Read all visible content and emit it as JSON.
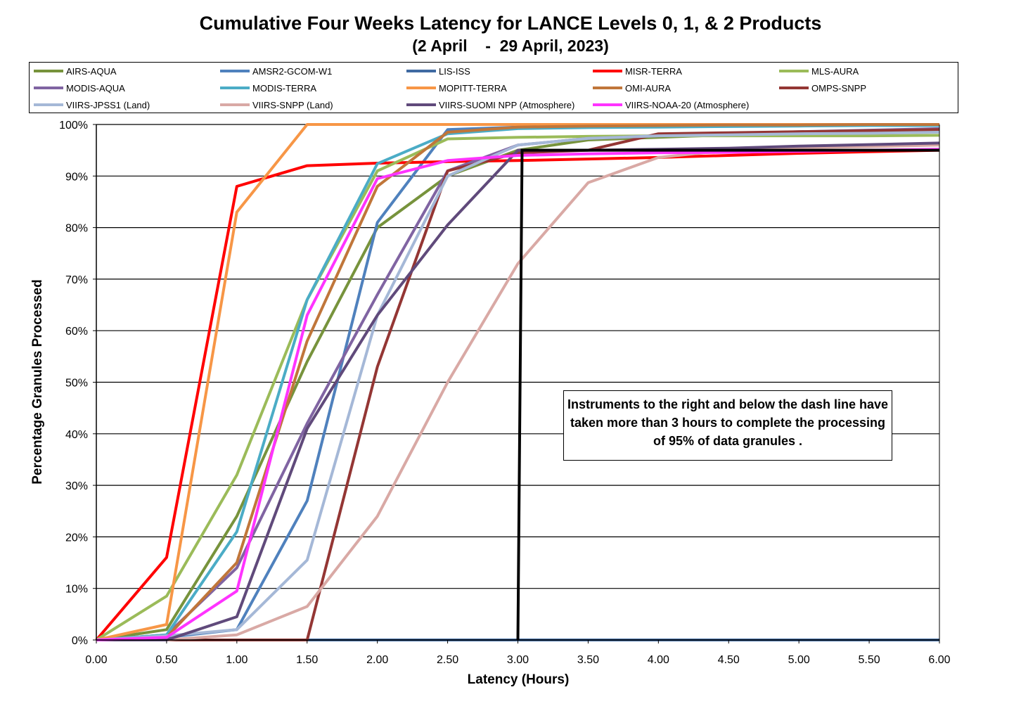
{
  "chart_data": {
    "type": "line",
    "title": "Cumulative Four Weeks Latency for LANCE Levels 0, 1, & 2 Products",
    "subtitle": "(2 April    -  29 April, 2023)",
    "xlabel": "Latency (Hours)",
    "ylabel": "Percentage Granules Processed",
    "xlim": [
      0,
      6
    ],
    "ylim": [
      0,
      100
    ],
    "x_ticks": [
      "0.00",
      "0.50",
      "1.00",
      "1.50",
      "2.00",
      "2.50",
      "3.00",
      "3.50",
      "4.00",
      "4.50",
      "5.00",
      "5.50",
      "6.00"
    ],
    "y_ticks": [
      "0%",
      "10%",
      "20%",
      "30%",
      "40%",
      "50%",
      "60%",
      "70%",
      "80%",
      "90%",
      "100%"
    ],
    "grid": "horizontal",
    "legend_position": "top",
    "x": [
      0,
      0.5,
      1.0,
      1.5,
      2.0,
      2.5,
      3.0,
      3.5,
      4.0,
      4.5,
      5.0,
      5.5,
      6.0
    ],
    "series": [
      {
        "name": "AIRS-AQUA",
        "color": "#77933c",
        "values": [
          0,
          2,
          24,
          54,
          80,
          90,
          95,
          97,
          97.5,
          98,
          98,
          98.5,
          99
        ]
      },
      {
        "name": "AMSR2-GCOM-W1",
        "color": "#4f81bd",
        "values": [
          0,
          0.5,
          2,
          27,
          81,
          99,
          99.5,
          99.7,
          99.8,
          99.9,
          100,
          100,
          100
        ]
      },
      {
        "name": "LIS-ISS",
        "color": "#3f6aa2",
        "values": [
          0,
          0,
          0,
          0,
          0,
          0,
          0,
          0,
          0,
          0,
          0,
          0,
          0
        ]
      },
      {
        "name": "MISR-TERRA",
        "color": "#ff0000",
        "values": [
          0,
          16,
          88,
          92,
          92.5,
          92.8,
          93,
          93.3,
          93.6,
          94,
          94.4,
          94.7,
          95
        ]
      },
      {
        "name": "MLS-AURA",
        "color": "#9bbb59",
        "values": [
          0,
          8.5,
          32,
          66,
          91,
          97.2,
          97.5,
          97.7,
          97.8,
          97.8,
          97.8,
          97.8,
          97.9
        ]
      },
      {
        "name": "MODIS-AQUA",
        "color": "#8064a2",
        "values": [
          0,
          1,
          14,
          42,
          67,
          91,
          96,
          97.3,
          97.8,
          98.2,
          98.6,
          98.9,
          99.2
        ]
      },
      {
        "name": "MODIS-TERRA",
        "color": "#4bacc6",
        "values": [
          0,
          1,
          21,
          66,
          92.4,
          98.2,
          99.2,
          99.4,
          99.5,
          99.6,
          99.7,
          99.8,
          99.8
        ]
      },
      {
        "name": "MOPITT-TERRA",
        "color": "#f79646",
        "values": [
          0,
          3,
          83,
          100,
          100,
          100,
          100,
          100,
          100,
          100,
          100,
          100,
          100
        ]
      },
      {
        "name": "OMI-AURA",
        "color": "#c0763a",
        "values": [
          0,
          0.5,
          15,
          58,
          88,
          98.5,
          99.5,
          99.7,
          99.8,
          99.9,
          99.9,
          100,
          100
        ]
      },
      {
        "name": "OMPS-SNPP",
        "color": "#943634",
        "values": [
          0,
          0,
          0,
          0,
          53,
          91,
          94.5,
          95,
          98.2,
          98.4,
          98.6,
          98.8,
          99
        ]
      },
      {
        "name": "VIIRS-JPSS1 (Land)",
        "color": "#a5b8d7",
        "values": [
          0,
          0.8,
          2,
          15.5,
          63,
          90,
          96,
          97.3,
          97.8,
          98,
          98.2,
          98.3,
          98.5
        ]
      },
      {
        "name": "VIIRS-SNPP (Land)",
        "color": "#d9a9a5",
        "values": [
          0,
          0,
          1,
          6.5,
          24,
          50,
          73,
          88.7,
          93.6,
          95,
          95.5,
          95.7,
          96
        ]
      },
      {
        "name": "VIIRS-SUOMI NPP (Atmosphere)",
        "color": "#604a7b",
        "values": [
          0,
          0,
          4.5,
          41,
          63,
          80.5,
          95,
          95,
          95.2,
          95.4,
          95.8,
          96.1,
          96.4
        ]
      },
      {
        "name": "VIIRS-NOAA-20 (Atmosphere)",
        "color": "#ff33ff",
        "values": [
          0,
          0.5,
          9.5,
          63,
          89.5,
          93,
          94,
          94.3,
          94.5,
          94.6,
          94.8,
          95,
          95.2
        ]
      }
    ],
    "threshold_line": {
      "x_bottom": 3.0,
      "x_top": 3.03,
      "y_level": 95
    },
    "annotation": "Instruments to the right and below the dash line have taken more than 3 hours to complete the processing of 95% of data granules ."
  }
}
